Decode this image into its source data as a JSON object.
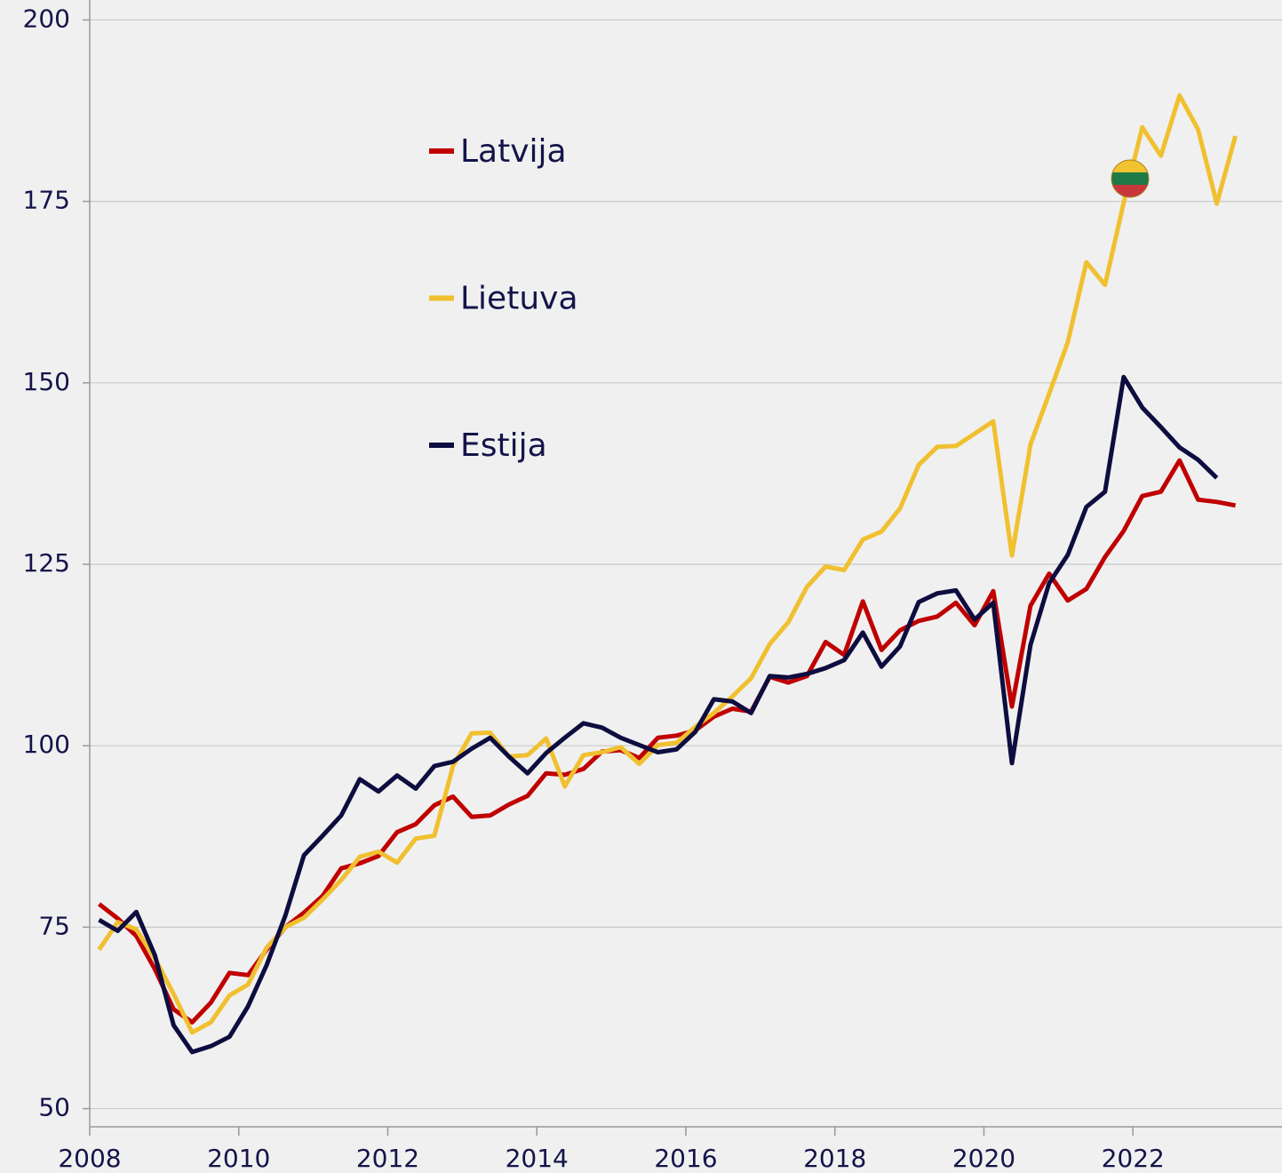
{
  "chart_data": {
    "type": "line",
    "x": [
      2008.125,
      2008.375,
      2008.625,
      2008.875,
      2009.125,
      2009.375,
      2009.625,
      2009.875,
      2010.125,
      2010.375,
      2010.625,
      2010.875,
      2011.125,
      2011.375,
      2011.625,
      2011.875,
      2012.125,
      2012.375,
      2012.625,
      2012.875,
      2013.125,
      2013.375,
      2013.625,
      2013.875,
      2014.125,
      2014.375,
      2014.625,
      2014.875,
      2015.125,
      2015.375,
      2015.625,
      2015.875,
      2016.125,
      2016.375,
      2016.625,
      2016.875,
      2017.125,
      2017.375,
      2017.625,
      2017.875,
      2018.125,
      2018.375,
      2018.625,
      2018.875,
      2019.125,
      2019.375,
      2019.625,
      2019.875,
      2020.125,
      2020.375,
      2020.625,
      2020.875,
      2021.125,
      2021.375,
      2021.625,
      2021.875,
      2022.125,
      2022.375,
      2022.625,
      2022.875,
      2023.125,
      2023.375
    ],
    "series": [
      {
        "name": "Latvija",
        "color": "#c00000",
        "values": [
          78.2,
          76.2,
          73.8,
          69.2,
          63.7,
          61.9,
          64.6,
          68.7,
          68.4,
          71.9,
          75.0,
          77.0,
          79.3,
          83.1,
          83.8,
          84.8,
          88.1,
          89.2,
          91.8,
          93.0,
          90.2,
          90.4,
          91.9,
          93.1,
          96.2,
          96.0,
          96.8,
          99.2,
          99.4,
          98.3,
          101.1,
          101.4,
          102.1,
          104.0,
          105.1,
          104.7,
          109.5,
          108.7,
          109.6,
          114.3,
          112.5,
          119.9,
          113.2,
          115.9,
          117.2,
          117.8,
          119.7,
          116.6,
          121.3,
          105.4,
          119.3,
          123.7,
          120.0,
          121.6,
          126.0,
          129.6,
          134.4,
          135.0,
          139.3,
          133.9,
          133.6,
          133.1
        ]
      },
      {
        "name": "Lietuva",
        "color": "#f0c030",
        "values": [
          71.9,
          75.7,
          74.7,
          70.7,
          65.8,
          60.5,
          61.9,
          65.6,
          67.1,
          72.2,
          75.0,
          76.3,
          78.8,
          81.5,
          84.7,
          85.4,
          83.9,
          87.2,
          87.6,
          97.2,
          101.7,
          101.8,
          98.5,
          98.7,
          101.0,
          94.4,
          98.7,
          99.1,
          99.8,
          97.5,
          100.1,
          100.4,
          102.6,
          104.5,
          106.8,
          109.3,
          114.0,
          117.0,
          121.9,
          124.7,
          124.2,
          128.4,
          129.5,
          132.7,
          138.7,
          141.2,
          141.3,
          143.0,
          144.7,
          126.2,
          141.5,
          148.5,
          155.6,
          166.6,
          163.5,
          174.8,
          185.2,
          181.3,
          189.6,
          184.9,
          174.7,
          184.0
        ]
      },
      {
        "name": "Estija",
        "color": "#0d0d40",
        "values": [
          76.0,
          74.5,
          77.1,
          71.1,
          61.5,
          57.8,
          58.6,
          59.9,
          64.1,
          69.8,
          76.6,
          84.9,
          87.6,
          90.4,
          95.4,
          93.7,
          95.9,
          94.1,
          97.2,
          97.8,
          99.6,
          101.1,
          98.5,
          96.2,
          99.0,
          101.1,
          103.1,
          102.5,
          101.1,
          100.1,
          99.1,
          99.5,
          101.9,
          106.4,
          106.1,
          104.5,
          109.6,
          109.4,
          109.9,
          110.7,
          111.8,
          115.6,
          110.9,
          113.7,
          119.8,
          121.0,
          121.4,
          117.4,
          119.7,
          97.6,
          113.9,
          122.4,
          126.3,
          132.9,
          135.0,
          150.8,
          146.6,
          143.9,
          141.1,
          139.4,
          136.9,
          null
        ]
      }
    ],
    "xlim": [
      2008,
      2024
    ],
    "xticks": [
      2008,
      2010,
      2012,
      2014,
      2016,
      2018,
      2020,
      2022
    ],
    "ylim": [
      47.5,
      202.5
    ],
    "yticks": [
      50,
      75,
      100,
      125,
      150,
      175,
      200
    ],
    "grid": true
  }
}
